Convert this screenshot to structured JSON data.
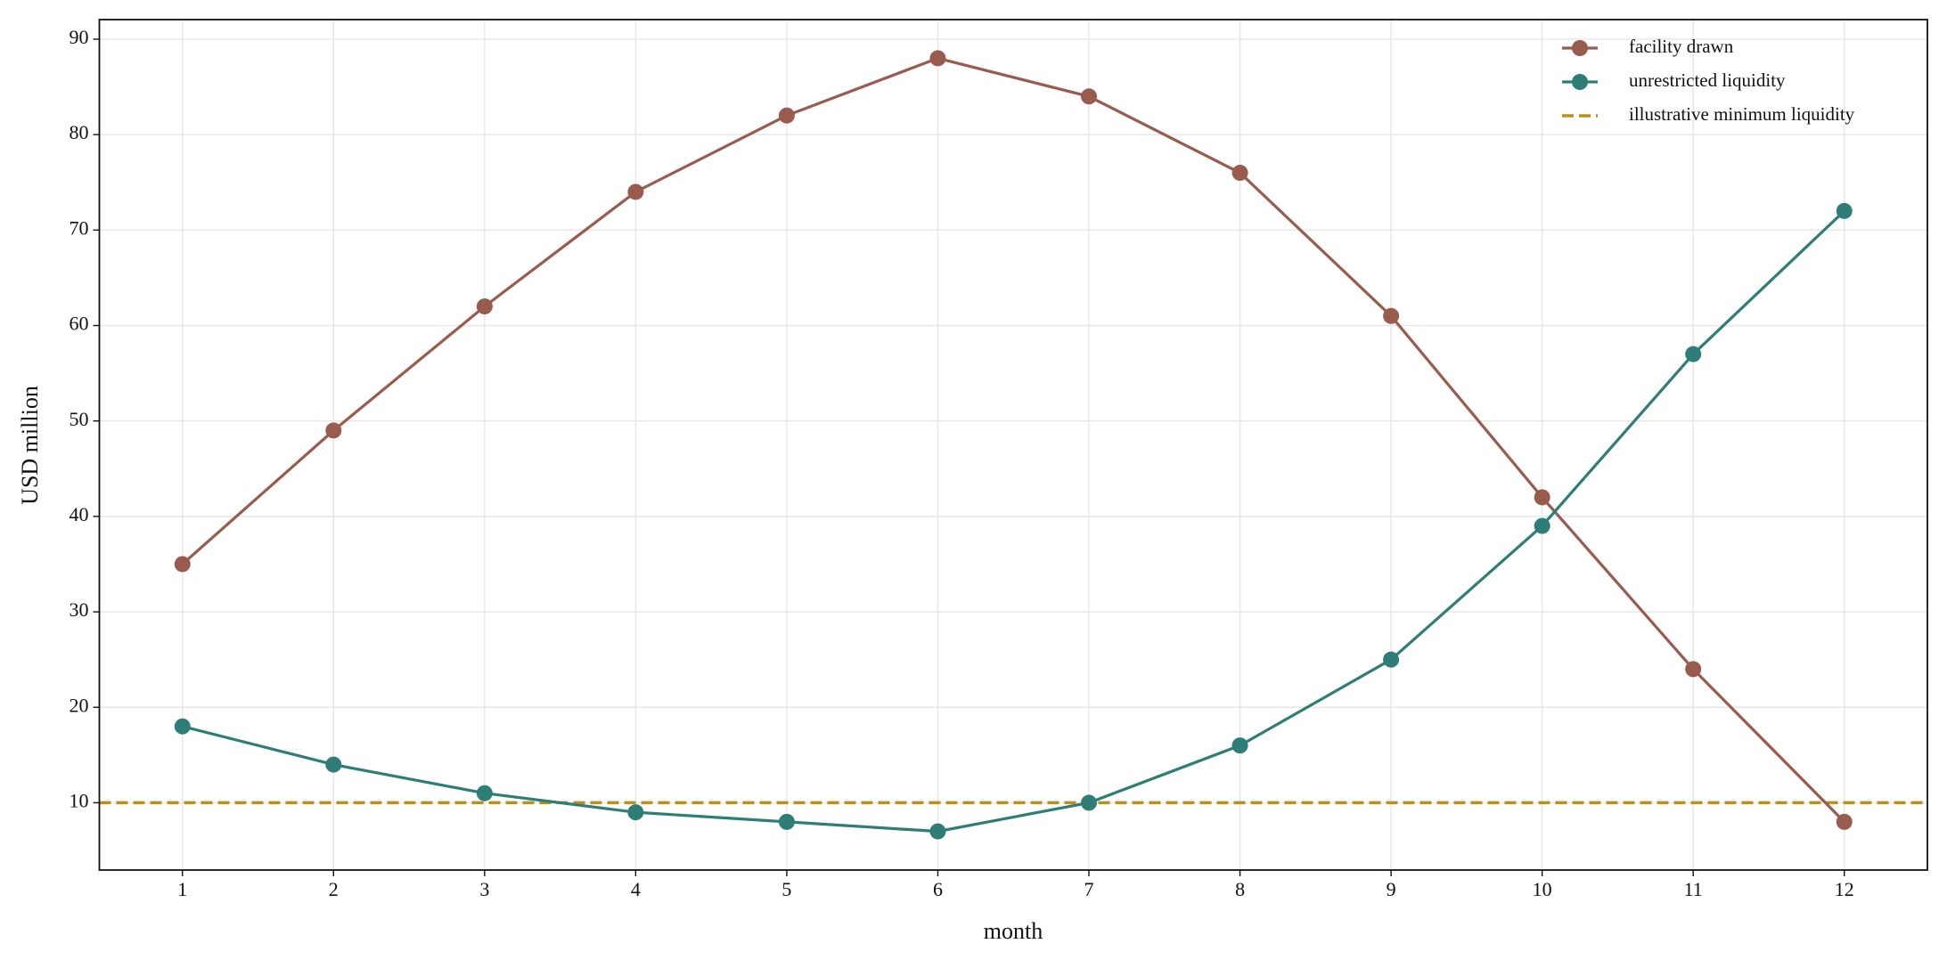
{
  "chart_data": {
    "type": "line",
    "x_label": "month",
    "y_label": "USD million",
    "x": [
      1,
      2,
      3,
      4,
      5,
      6,
      7,
      8,
      9,
      10,
      11,
      12
    ],
    "series": [
      {
        "name": "facility drawn",
        "color": "#9a5b4f",
        "values": [
          35,
          49,
          62,
          74,
          82,
          88,
          84,
          76,
          61,
          42,
          24,
          8
        ]
      },
      {
        "name": "unrestricted liquidity",
        "color": "#2e7d77",
        "values": [
          18,
          14,
          11,
          9,
          8,
          7,
          10,
          16,
          25,
          39,
          57,
          72
        ]
      }
    ],
    "hline": {
      "name": "illustrative minimum liquidity",
      "value": 10,
      "color": "#b8901f"
    },
    "xlim": [
      0.45,
      12.55
    ],
    "ylim": [
      2.95,
      92.05
    ],
    "xticks": [
      1,
      2,
      3,
      4,
      5,
      6,
      7,
      8,
      9,
      10,
      11,
      12
    ],
    "yticks": [
      10,
      20,
      30,
      40,
      50,
      60,
      70,
      80,
      90
    ],
    "grid": true,
    "legend": "upper right"
  }
}
